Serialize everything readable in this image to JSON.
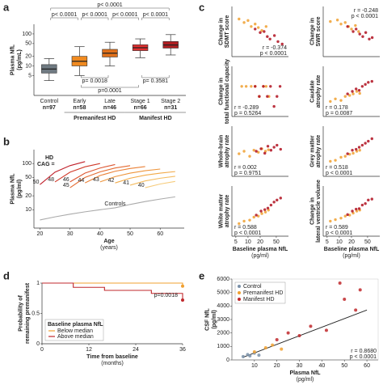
{
  "chart_data": [
    {
      "type": "box",
      "panel": "a",
      "ylabel": [
        "Plasma NfL",
        "(pg/mL)"
      ],
      "categories": [
        "Control",
        "Early",
        "Late",
        "Stage 1",
        "Stage 2"
      ],
      "counts": [
        "n=97",
        "n=58",
        "n=46",
        "n=66",
        "n=31"
      ],
      "groups": [
        "Premanifest HD",
        "Manifest HD"
      ],
      "colors": [
        "#6f7a82",
        "#f08a20",
        "#e0701a",
        "#e03030",
        "#b01e22"
      ],
      "min": [
        3.5,
        5,
        10,
        18,
        22
      ],
      "q1": [
        6,
        10,
        19,
        30,
        36
      ],
      "median": [
        8,
        14,
        25,
        37,
        45
      ],
      "q3": [
        11,
        20,
        33,
        46,
        58
      ],
      "max": [
        17,
        40,
        55,
        70,
        95
      ],
      "ylim": [
        1.2,
        200
      ],
      "yticks": [
        5,
        10,
        20,
        50,
        100
      ],
      "yscale": "log",
      "annotations": [
        "p< 0.0001",
        "p< 0.0001",
        "p< 0.0001",
        "p< 0.0001",
        "p< 0.0001",
        "p= 0.0018",
        "p= 0.3581",
        "p=0.0001"
      ]
    },
    {
      "type": "line",
      "panel": "b",
      "ylabel": [
        "Plasma NfL",
        "(pg/ml)"
      ],
      "xlabel": [
        "Age",
        "(years)"
      ],
      "x": [
        20,
        25,
        30,
        35,
        40,
        45,
        50,
        55,
        60,
        65
      ],
      "xlim": [
        18,
        68
      ],
      "xticks": [
        20,
        30,
        40,
        50,
        60
      ],
      "ylim": [
        4,
        200
      ],
      "yticks": [
        10,
        20,
        50,
        100
      ],
      "yscale": "log",
      "annotations": [
        "HD",
        "CAG ="
      ],
      "series": [
        {
          "name": "50",
          "color": "#c0202a",
          "values": [
            35,
            65,
            90,
            110,
            null,
            null,
            null,
            null,
            null,
            null
          ]
        },
        {
          "name": "48",
          "color": "#d03a2a",
          "values": [
            null,
            40,
            65,
            85,
            100,
            null,
            null,
            null,
            null,
            null
          ]
        },
        {
          "name": "46",
          "color": "#dc5530",
          "values": [
            null,
            null,
            40,
            62,
            80,
            95,
            null,
            null,
            null,
            null
          ]
        },
        {
          "name": "45",
          "color": "#e46a30",
          "values": [
            null,
            null,
            30,
            50,
            66,
            80,
            90,
            null,
            null,
            null
          ]
        },
        {
          "name": "44",
          "color": "#ea8036",
          "values": [
            null,
            null,
            null,
            38,
            55,
            68,
            78,
            86,
            null,
            null
          ]
        },
        {
          "name": "43",
          "color": "#ee953c",
          "values": [
            null,
            null,
            null,
            null,
            40,
            52,
            62,
            70,
            76,
            null
          ]
        },
        {
          "name": "42",
          "color": "#f2aa48",
          "values": [
            null,
            null,
            null,
            null,
            null,
            38,
            48,
            56,
            62,
            67
          ]
        },
        {
          "name": "41",
          "color": "#f4bc60",
          "values": [
            null,
            null,
            null,
            null,
            null,
            null,
            34,
            42,
            48,
            53
          ]
        },
        {
          "name": "40",
          "color": "#f6cc7c",
          "values": [
            null,
            null,
            null,
            null,
            null,
            null,
            null,
            30,
            36,
            41
          ]
        },
        {
          "name": "Controls",
          "color": "#aaaaaa",
          "values": [
            6,
            7,
            8,
            9,
            10,
            11,
            13,
            15,
            17,
            19
          ]
        }
      ]
    },
    {
      "type": "scatter",
      "panel": "c",
      "ylabel": [
        "Change in",
        "SDMT score"
      ],
      "annotations": [
        "r = -0.374",
        "p < 0.0001"
      ],
      "xlim": [
        4,
        100
      ],
      "xscale": "log",
      "ylim": [
        0,
        10
      ],
      "series": [
        {
          "color": "#f0a030",
          "x": [
            6,
            8,
            10,
            12,
            15,
            18,
            22,
            28
          ],
          "values": [
            7.5,
            6.8,
            7.2,
            6,
            6.5,
            5.8,
            5.2,
            6
          ]
        },
        {
          "color": "#b01020",
          "x": [
            15,
            20,
            25,
            30,
            35,
            45,
            55,
            70
          ],
          "values": [
            5.5,
            4.8,
            5,
            4,
            3.5,
            4.2,
            3,
            2.5
          ]
        }
      ]
    },
    {
      "type": "scatter",
      "ylabel": [
        "Change in",
        "SWR score"
      ],
      "annotations": [
        "r = -0.248",
        "p < 0.0001"
      ],
      "xlim": [
        4,
        100
      ],
      "xscale": "log",
      "ylim": [
        0,
        10
      ],
      "series": [
        {
          "color": "#f0a030",
          "x": [
            6,
            9,
            11,
            14,
            17,
            20,
            25,
            30
          ],
          "values": [
            7,
            7.3,
            6.5,
            6.8,
            6,
            5.5,
            6.2,
            5
          ]
        },
        {
          "color": "#b01020",
          "x": [
            16,
            22,
            26,
            32,
            38,
            45,
            55,
            65
          ],
          "values": [
            6,
            5,
            5.5,
            4.5,
            4,
            4.8,
            3.5,
            3.8
          ]
        }
      ]
    },
    {
      "type": "scatter",
      "ylabel": [
        "Change in",
        "total functional capacity"
      ],
      "annotations": [
        "r = -0.289",
        "p = 0.5264"
      ],
      "xlim": [
        4,
        100
      ],
      "xscale": "log",
      "ylim": [
        0,
        10
      ],
      "series": [
        {
          "color": "#f0a030",
          "x": [
            7,
            9,
            12,
            15,
            19,
            24,
            28,
            33
          ],
          "values": [
            6,
            6,
            6,
            6,
            4,
            6,
            6,
            4
          ]
        },
        {
          "color": "#b01020",
          "x": [
            15,
            19,
            24,
            30,
            36,
            44,
            52,
            62
          ],
          "values": [
            6,
            4,
            6,
            4,
            6,
            2,
            4,
            6
          ]
        }
      ]
    },
    {
      "type": "scatter",
      "ylabel": [
        "Caudate",
        "atrophy rate"
      ],
      "annotations": [
        "r = 0.178",
        "p = 0.0087"
      ],
      "xlim": [
        4,
        100
      ],
      "xscale": "log",
      "ylim": [
        0,
        10
      ],
      "series": [
        {
          "color": "#f0a030",
          "x": [
            6,
            8,
            11,
            14,
            18,
            22,
            27,
            32
          ],
          "values": [
            3,
            3.5,
            3.2,
            4,
            4.2,
            4.5,
            5,
            4.6
          ]
        },
        {
          "color": "#b01020",
          "x": [
            16,
            21,
            26,
            31,
            37,
            44,
            52,
            64
          ],
          "values": [
            4.5,
            5,
            5.5,
            5.2,
            6,
            6.4,
            6.8,
            7
          ]
        }
      ]
    },
    {
      "type": "scatter",
      "ylabel": [
        "Whole-brain",
        "atrophy rate"
      ],
      "annotations": [
        "r = 0.002",
        "p = 0.9751"
      ],
      "xlim": [
        4,
        100
      ],
      "xscale": "log",
      "ylim": [
        0,
        10
      ],
      "series": [
        {
          "color": "#f0a030",
          "x": [
            6,
            8,
            11,
            14,
            18,
            22,
            27,
            32
          ],
          "values": [
            4.5,
            5,
            4,
            5.2,
            4.8,
            5.5,
            5,
            5.3
          ]
        },
        {
          "color": "#b01020",
          "x": [
            16,
            21,
            26,
            31,
            37,
            44,
            52,
            64
          ],
          "values": [
            5,
            5.5,
            4.6,
            6,
            5.2,
            5.8,
            6.2,
            5.4
          ]
        }
      ]
    },
    {
      "type": "scatter",
      "ylabel": [
        "Grey matter",
        "atrophy rate"
      ],
      "annotations": [
        "r = 0.518",
        "p < 0.0001"
      ],
      "xlim": [
        4,
        100
      ],
      "xscale": "log",
      "ylim": [
        0,
        10
      ],
      "series": [
        {
          "color": "#f0a030",
          "x": [
            6,
            8,
            11,
            14,
            18,
            22,
            27,
            32
          ],
          "values": [
            3,
            3.2,
            3.8,
            4,
            4.4,
            4.6,
            5,
            5.2
          ]
        },
        {
          "color": "#b01020",
          "x": [
            16,
            21,
            26,
            31,
            37,
            44,
            52,
            64
          ],
          "values": [
            4.5,
            5.2,
            5.4,
            5.8,
            6.2,
            6.6,
            7,
            7.5
          ]
        }
      ]
    },
    {
      "type": "scatter",
      "ylabel": [
        "White matter",
        "atrophy rate"
      ],
      "xlabel": [
        "Baseline plasma NfL",
        "(pg/ml)"
      ],
      "annotations": [
        "r = 0.588",
        "p < 0.0001"
      ],
      "xlim": [
        4,
        100
      ],
      "xscale": "log",
      "xticks": [
        5,
        10,
        20,
        50
      ],
      "ylim": [
        0,
        10
      ],
      "series": [
        {
          "color": "#f0a030",
          "x": [
            6,
            8,
            11,
            14,
            18,
            22,
            27,
            32
          ],
          "values": [
            2.5,
            3,
            3.2,
            3.8,
            4,
            4.5,
            4.8,
            5.2
          ]
        },
        {
          "color": "#b01020",
          "x": [
            16,
            21,
            26,
            31,
            37,
            44,
            52,
            64
          ],
          "values": [
            4.2,
            5,
            5.3,
            5.6,
            6.2,
            6.8,
            7.2,
            7.6
          ]
        }
      ]
    },
    {
      "type": "scatter",
      "ylabel": [
        "Change in",
        "lateral ventricle volume"
      ],
      "xlabel": [
        "Baseline plasma NfL",
        "(pg/ml)"
      ],
      "annotations": [
        "r = 0.589",
        "p < 0.0001"
      ],
      "xlim": [
        4,
        100
      ],
      "xscale": "log",
      "xticks": [
        5,
        10,
        20,
        50
      ],
      "ylim": [
        0,
        10
      ],
      "series": [
        {
          "color": "#f0a030",
          "x": [
            6,
            8,
            11,
            14,
            18,
            22,
            27,
            32
          ],
          "values": [
            3,
            3.3,
            3.6,
            4,
            4.2,
            4.6,
            5,
            5.2
          ]
        },
        {
          "color": "#b01020",
          "x": [
            16,
            21,
            26,
            31,
            37,
            44,
            52,
            64
          ],
          "values": [
            4.3,
            5,
            5.4,
            5.5,
            6.2,
            6.5,
            7.2,
            7.4
          ]
        }
      ]
    },
    {
      "type": "step",
      "panel": "d",
      "ylabel": [
        "Probability of",
        "remaining premanifest"
      ],
      "xlabel": [
        "Time from baseline",
        "(months)"
      ],
      "xlim": [
        0,
        36
      ],
      "xticks": [
        0,
        12,
        24,
        36
      ],
      "ylim": [
        0,
        1
      ],
      "yticks": [
        0,
        0.5,
        1
      ],
      "annotations": [
        "p=0.0018"
      ],
      "legend_title": "Baseline plasma NfL",
      "legend": "lower left",
      "series": [
        {
          "name": "Below median",
          "color": "#f0a030",
          "x": [
            0,
            30,
            36
          ],
          "values": [
            1,
            1,
            0.95
          ]
        },
        {
          "name": "Above median",
          "color": "#c0282c",
          "x": [
            0,
            8,
            16,
            28,
            36
          ],
          "values": [
            1,
            0.93,
            0.88,
            0.83,
            0.72
          ]
        }
      ]
    },
    {
      "type": "scatter",
      "panel": "e",
      "ylabel": [
        "CSF NfL",
        "(pg/ml)"
      ],
      "xlabel": [
        "Plasma NfL",
        "(pg/ml)"
      ],
      "xlim": [
        0,
        65
      ],
      "xticks": [
        10,
        20,
        30,
        40,
        50,
        60
      ],
      "ylim": [
        0,
        6000
      ],
      "yticks": [
        0,
        1000,
        2000,
        3000,
        4000,
        5000,
        6000
      ],
      "legend": "upper left",
      "annotations": [
        "r = 0.8680",
        "p < 0.0001"
      ],
      "series": [
        {
          "name": "Control",
          "color": "#7a90a8",
          "x": [
            5,
            7,
            8,
            10,
            12
          ],
          "values": [
            250,
            400,
            300,
            500,
            350
          ]
        },
        {
          "name": "Premanifest HD",
          "color": "#f0a030",
          "x": [
            10,
            15,
            18,
            22
          ],
          "values": [
            600,
            900,
            1100,
            800
          ]
        },
        {
          "name": "Manifest HD",
          "color": "#c0282c",
          "x": [
            20,
            25,
            30,
            35,
            42,
            48,
            50,
            55,
            57
          ],
          "values": [
            1500,
            2000,
            1800,
            2500,
            2200,
            5700,
            4500,
            3700,
            5200
          ]
        }
      ],
      "trend": {
        "color": "#222222",
        "x": [
          5,
          60
        ],
        "values": [
          200,
          3700
        ]
      }
    }
  ]
}
